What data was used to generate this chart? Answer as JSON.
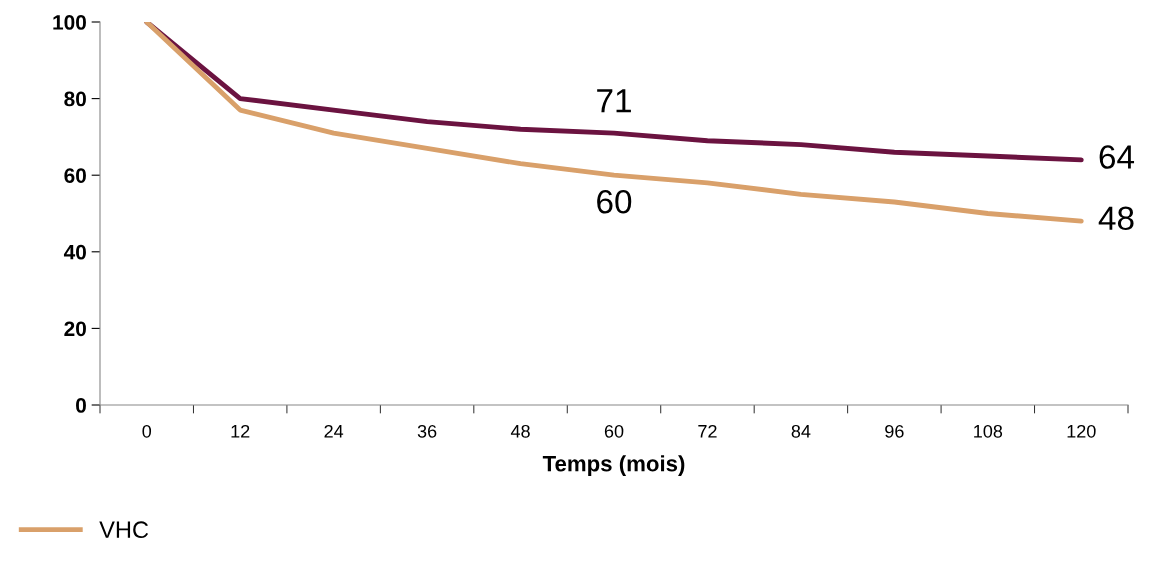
{
  "chart_data": {
    "type": "line",
    "xlabel": "Temps (mois)",
    "categories": [
      "0",
      "12",
      "24",
      "36",
      "48",
      "60",
      "72",
      "84",
      "96",
      "108",
      "120"
    ],
    "series": [
      {
        "color": "#6b1340",
        "values": [
          100,
          80,
          77,
          74,
          72,
          71,
          69,
          68,
          66,
          65,
          64
        ],
        "value_labels": [
          null,
          null,
          null,
          null,
          null,
          "71",
          null,
          null,
          null,
          null,
          "64"
        ]
      },
      {
        "name": "VHC",
        "color": "#d9a06a",
        "values": [
          100,
          77,
          71,
          67,
          63,
          60,
          58,
          55,
          53,
          50,
          48
        ],
        "value_labels": [
          null,
          null,
          null,
          null,
          null,
          "60",
          null,
          null,
          null,
          null,
          "48"
        ]
      }
    ],
    "ylim": [
      0,
      100
    ],
    "yticks": [
      0,
      20,
      40,
      60,
      80,
      100
    ],
    "grid": false,
    "legend": "bottom left",
    "marker": "none",
    "line_style": "solid"
  }
}
